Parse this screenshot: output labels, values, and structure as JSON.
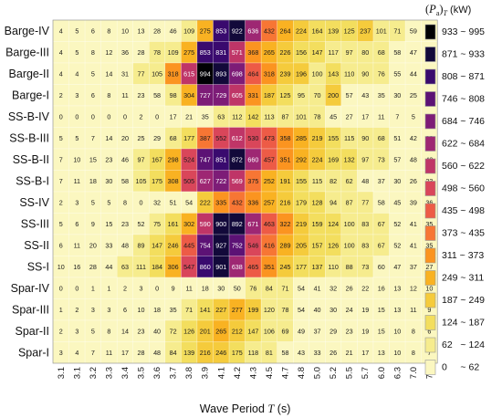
{
  "chart_data": {
    "type": "heatmap",
    "title": "",
    "xlabel": "Wave Period T (s)",
    "xlabel_parts": [
      "Wave Period ",
      "T",
      " (s)"
    ],
    "columns": [
      "3.1",
      "3.1",
      "3.2",
      "3.3",
      "3.4",
      "3.5",
      "3.6",
      "3.7",
      "3.8",
      "3.9",
      "4.1",
      "4.2",
      "4.3",
      "4.5",
      "4.7",
      "4.8",
      "5.0",
      "5.2",
      "5.5",
      "5.7",
      "6.0",
      "6.3",
      "7.0",
      "7.4"
    ],
    "rows": [
      "Barge-IV",
      "Barge-III",
      "Barge-II",
      "Barge-I",
      "SS-B-IV",
      "SS-B-III",
      "SS-B-II",
      "SS-B-I",
      "SS-IV",
      "SS-III",
      "SS-II",
      "SS-I",
      "Spar-IV",
      "Spar-III",
      "Spar-II",
      "Spar-I"
    ],
    "values": [
      [
        4,
        5,
        6,
        8,
        10,
        13,
        28,
        46,
        109,
        275,
        853,
        922,
        636,
        432,
        264,
        224,
        164,
        139,
        125,
        237,
        101,
        71,
        59,
        47
      ],
      [
        4,
        5,
        8,
        12,
        36,
        28,
        78,
        109,
        275,
        853,
        831,
        571,
        368,
        265,
        226,
        156,
        147,
        117,
        97,
        80,
        68,
        58,
        47,
        32
      ],
      [
        4,
        4,
        5,
        14,
        31,
        77,
        105,
        318,
        615,
        994,
        893,
        698,
        464,
        318,
        239,
        196,
        100,
        143,
        110,
        90,
        76,
        55,
        44,
        30
      ],
      [
        2,
        3,
        6,
        8,
        11,
        23,
        58,
        98,
        304,
        727,
        729,
        605,
        331,
        187,
        125,
        95,
        70,
        200,
        57,
        43,
        35,
        30,
        25,
        22
      ],
      [
        0,
        0,
        0,
        0,
        0,
        2,
        0,
        17,
        21,
        35,
        63,
        112,
        142,
        113,
        87,
        101,
        78,
        45,
        27,
        17,
        11,
        7,
        5,
        3
      ],
      [
        5,
        5,
        7,
        14,
        20,
        25,
        29,
        68,
        177,
        387,
        552,
        612,
        530,
        473,
        358,
        285,
        219,
        155,
        115,
        90,
        68,
        51,
        42,
        38
      ],
      [
        7,
        10,
        15,
        23,
        46,
        97,
        167,
        298,
        524,
        747,
        851,
        872,
        660,
        457,
        351,
        292,
        224,
        169,
        132,
        97,
        73,
        57,
        48,
        43
      ],
      [
        7,
        11,
        18,
        30,
        58,
        105,
        175,
        308,
        505,
        627,
        722,
        569,
        375,
        252,
        191,
        155,
        115,
        82,
        62,
        48,
        37,
        30,
        26,
        23
      ],
      [
        2,
        3,
        5,
        5,
        8,
        0,
        32,
        51,
        54,
        222,
        335,
        432,
        336,
        257,
        216,
        179,
        128,
        94,
        87,
        77,
        58,
        45,
        39,
        36
      ],
      [
        5,
        6,
        9,
        15,
        23,
        52,
        75,
        161,
        302,
        590,
        900,
        892,
        671,
        463,
        322,
        219,
        159,
        124,
        100,
        83,
        67,
        52,
        41,
        35
      ],
      [
        6,
        11,
        20,
        33,
        48,
        89,
        147,
        246,
        445,
        754,
        927,
        752,
        546,
        416,
        289,
        205,
        157,
        126,
        100,
        83,
        67,
        52,
        41,
        35
      ],
      [
        10,
        16,
        28,
        44,
        63,
        111,
        184,
        306,
        547,
        860,
        901,
        638,
        465,
        351,
        245,
        177,
        137,
        110,
        88,
        73,
        60,
        47,
        37,
        27
      ],
      [
        0,
        0,
        1,
        1,
        2,
        3,
        0,
        9,
        11,
        18,
        30,
        50,
        76,
        84,
        71,
        54,
        41,
        32,
        26,
        22,
        16,
        13,
        12,
        10
      ],
      [
        1,
        2,
        3,
        3,
        6,
        10,
        18,
        35,
        71,
        141,
        227,
        277,
        199,
        120,
        78,
        54,
        40,
        30,
        24,
        19,
        15,
        13,
        11,
        9
      ],
      [
        2,
        3,
        5,
        8,
        14,
        23,
        40,
        72,
        126,
        201,
        265,
        212,
        147,
        106,
        69,
        49,
        37,
        29,
        23,
        19,
        15,
        10,
        8,
        6
      ],
      [
        3,
        4,
        7,
        11,
        17,
        28,
        48,
        84,
        139,
        216,
        246,
        175,
        118,
        81,
        58,
        43,
        33,
        26,
        21,
        17,
        13,
        10,
        8,
        7
      ]
    ],
    "colorbar": {
      "title_parts": [
        "(",
        "P",
        "a",
        ")",
        "T",
        " (kW)"
      ],
      "bins": [
        {
          "label": "933 ~ 995",
          "color": "#000004"
        },
        {
          "label": "871 ~ 933",
          "color": "#12093a"
        },
        {
          "label": "808 ~ 871",
          "color": "#390a6e"
        },
        {
          "label": "746 ~ 808",
          "color": "#5c1275"
        },
        {
          "label": "684 ~ 746",
          "color": "#7d1c77"
        },
        {
          "label": "622 ~ 684",
          "color": "#9e2773"
        },
        {
          "label": "560 ~ 622",
          "color": "#bf3567"
        },
        {
          "label": "498 ~ 560",
          "color": "#d9465a"
        },
        {
          "label": "435 ~ 498",
          "color": "#ed5b46"
        },
        {
          "label": "373 ~ 435",
          "color": "#f77634"
        },
        {
          "label": "311 ~ 373",
          "color": "#fb9420"
        },
        {
          "label": "249 ~ 311",
          "color": "#f9b222"
        },
        {
          "label": "187 ~ 249",
          "color": "#f5cb3c"
        },
        {
          "label": "124 ~ 187",
          "color": "#f3de5e"
        },
        {
          "label": "62   ~ 124",
          "color": "#f6ec8e"
        },
        {
          "label": "0     ~ 62",
          "color": "#fbf7c0"
        }
      ]
    }
  }
}
